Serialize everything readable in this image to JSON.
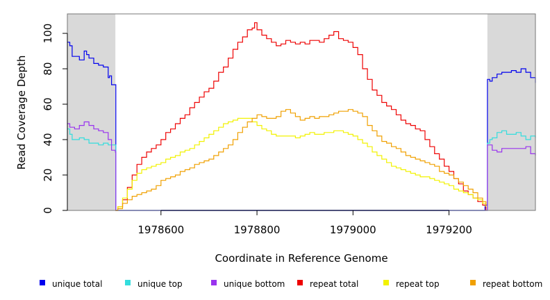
{
  "chart_data": {
    "type": "line",
    "title": "",
    "xlabel": "Coordinate in Reference Genome",
    "ylabel": "Read Coverage Depth",
    "xlim": [
      1978405,
      1979380
    ],
    "ylim": [
      0,
      111
    ],
    "xticks": [
      1978600,
      1978800,
      1979000,
      1979200
    ],
    "xtick_labels": [
      "1978600",
      "1978800",
      "1979000",
      "1979200"
    ],
    "yticks": [
      0,
      20,
      40,
      60,
      80,
      100
    ],
    "ytick_labels": [
      "0",
      "20",
      "40",
      "60",
      "80",
      "100"
    ],
    "shaded_regions": [
      {
        "from": 1978405,
        "to": 1978505,
        "color": "#d9d9d9"
      },
      {
        "from": 1979280,
        "to": 1979380,
        "color": "#d9d9d9"
      }
    ],
    "grid": false,
    "legend_placement": "bottom",
    "series": [
      {
        "name": "unique total",
        "color": "#0000ee",
        "x": [
          1978405,
          1978410,
          1978415,
          1978420,
          1978430,
          1978440,
          1978445,
          1978450,
          1978460,
          1978470,
          1978480,
          1978490,
          1978493,
          1978497,
          1978505,
          1978506,
          1978510,
          1979270,
          1979275,
          1979276,
          1979280,
          1979285,
          1979290,
          1979300,
          1979310,
          1979320,
          1979330,
          1979340,
          1979350,
          1979360,
          1979370,
          1979380
        ],
        "y": [
          95,
          93,
          87,
          87,
          85,
          90,
          88,
          86,
          83,
          82,
          81,
          75,
          76,
          71,
          71,
          0,
          0,
          0,
          2,
          3,
          74,
          73,
          75,
          77,
          78,
          78,
          79,
          78,
          80,
          78,
          75,
          72
        ]
      },
      {
        "name": "unique top",
        "color": "#33dddd",
        "x": [
          1978405,
          1978410,
          1978415,
          1978430,
          1978440,
          1978450,
          1978460,
          1978470,
          1978480,
          1978490,
          1978497,
          1978505,
          1978506,
          1978510,
          1979270,
          1979279,
          1979280,
          1979285,
          1979290,
          1979300,
          1979310,
          1979320,
          1979330,
          1979340,
          1979350,
          1979360,
          1979370,
          1979380
        ],
        "y": [
          46,
          43,
          40,
          41,
          40,
          38,
          38,
          37,
          38,
          37,
          37,
          37,
          0,
          0,
          0,
          0,
          38,
          40,
          41,
          44,
          45,
          43,
          43,
          44,
          42,
          40,
          42,
          41
        ]
      },
      {
        "name": "unique bottom",
        "color": "#9933ee",
        "x": [
          1978405,
          1978410,
          1978420,
          1978430,
          1978440,
          1978450,
          1978460,
          1978470,
          1978480,
          1978490,
          1978497,
          1978505,
          1978506,
          1978510,
          1979270,
          1979279,
          1979280,
          1979290,
          1979300,
          1979310,
          1979320,
          1979330,
          1979340,
          1979350,
          1979360,
          1979370,
          1979380
        ],
        "y": [
          49,
          47,
          46,
          48,
          50,
          48,
          46,
          45,
          44,
          40,
          34,
          33,
          0,
          0,
          0,
          0,
          37,
          34,
          33,
          35,
          35,
          35,
          35,
          35,
          36,
          32,
          31
        ]
      },
      {
        "name": "repeat total",
        "color": "#ee0000",
        "x": [
          1978505,
          1978510,
          1978520,
          1978530,
          1978540,
          1978550,
          1978560,
          1978570,
          1978580,
          1978590,
          1978600,
          1978610,
          1978620,
          1978630,
          1978640,
          1978650,
          1978660,
          1978670,
          1978680,
          1978690,
          1978700,
          1978710,
          1978720,
          1978730,
          1978740,
          1978750,
          1978760,
          1978770,
          1978780,
          1978790,
          1978795,
          1978800,
          1978810,
          1978820,
          1978830,
          1978840,
          1978850,
          1978860,
          1978870,
          1978880,
          1978890,
          1978900,
          1978910,
          1978920,
          1978930,
          1978940,
          1978950,
          1978960,
          1978970,
          1978980,
          1978990,
          1979000,
          1979010,
          1979020,
          1979030,
          1979040,
          1979050,
          1979060,
          1979070,
          1979080,
          1979090,
          1979100,
          1979110,
          1979120,
          1979130,
          1979140,
          1979150,
          1979160,
          1979170,
          1979180,
          1979190,
          1979200,
          1979210,
          1979220,
          1979230,
          1979240,
          1979250,
          1979260,
          1979270,
          1979277
        ],
        "y": [
          0,
          2,
          6,
          13,
          20,
          26,
          30,
          33,
          35,
          37,
          40,
          44,
          46,
          49,
          52,
          54,
          58,
          61,
          64,
          67,
          69,
          73,
          78,
          81,
          86,
          91,
          95,
          98,
          102,
          103,
          106,
          102,
          99,
          97,
          95,
          93,
          94,
          96,
          95,
          94,
          95,
          94,
          96,
          96,
          95,
          97,
          99,
          101,
          97,
          96,
          95,
          92,
          88,
          80,
          74,
          68,
          65,
          61,
          59,
          57,
          54,
          51,
          49,
          48,
          46,
          45,
          40,
          36,
          32,
          29,
          25,
          22,
          18,
          15,
          11,
          9,
          7,
          5,
          3,
          0
        ]
      },
      {
        "name": "repeat top",
        "color": "#f2f200",
        "x": [
          1978505,
          1978510,
          1978520,
          1978530,
          1978540,
          1978550,
          1978560,
          1978570,
          1978580,
          1978590,
          1978600,
          1978610,
          1978620,
          1978630,
          1978640,
          1978650,
          1978660,
          1978670,
          1978680,
          1978690,
          1978700,
          1978710,
          1978720,
          1978730,
          1978740,
          1978750,
          1978760,
          1978770,
          1978780,
          1978790,
          1978800,
          1978810,
          1978820,
          1978830,
          1978840,
          1978850,
          1978860,
          1978870,
          1978880,
          1978890,
          1978900,
          1978910,
          1978920,
          1978930,
          1978940,
          1978950,
          1978960,
          1978970,
          1978980,
          1978990,
          1979000,
          1979010,
          1979020,
          1979030,
          1979040,
          1979050,
          1979060,
          1979070,
          1979080,
          1979090,
          1979100,
          1979110,
          1979120,
          1979130,
          1979140,
          1979150,
          1979160,
          1979170,
          1979180,
          1979190,
          1979200,
          1979210,
          1979220,
          1979230,
          1979240,
          1979250,
          1979260,
          1979270,
          1979277
        ],
        "y": [
          0,
          2,
          7,
          12,
          17,
          21,
          23,
          24,
          25,
          26,
          27,
          29,
          30,
          31,
          33,
          34,
          35,
          37,
          39,
          41,
          43,
          45,
          47,
          49,
          50,
          51,
          52,
          52,
          52,
          50,
          48,
          46,
          45,
          43,
          42,
          42,
          42,
          42,
          41,
          42,
          43,
          44,
          43,
          43,
          44,
          44,
          45,
          45,
          44,
          43,
          42,
          40,
          38,
          36,
          33,
          31,
          29,
          27,
          25,
          24,
          23,
          22,
          21,
          20,
          19,
          19,
          18,
          17,
          16,
          15,
          14,
          12,
          11,
          10,
          9,
          7,
          6,
          4,
          2
        ]
      },
      {
        "name": "repeat bottom",
        "color": "#f0a000",
        "x": [
          1978505,
          1978510,
          1978520,
          1978530,
          1978540,
          1978550,
          1978560,
          1978570,
          1978580,
          1978590,
          1978600,
          1978610,
          1978620,
          1978630,
          1978640,
          1978650,
          1978660,
          1978670,
          1978680,
          1978690,
          1978700,
          1978710,
          1978720,
          1978730,
          1978740,
          1978750,
          1978760,
          1978770,
          1978780,
          1978790,
          1978800,
          1978810,
          1978820,
          1978830,
          1978840,
          1978850,
          1978860,
          1978870,
          1978880,
          1978890,
          1978900,
          1978910,
          1978920,
          1978930,
          1978940,
          1978950,
          1978960,
          1978970,
          1978980,
          1978990,
          1979000,
          1979010,
          1979020,
          1979030,
          1979040,
          1979050,
          1979060,
          1979070,
          1979080,
          1979090,
          1979100,
          1979110,
          1979120,
          1979130,
          1979140,
          1979150,
          1979160,
          1979170,
          1979180,
          1979190,
          1979200,
          1979210,
          1979220,
          1979230,
          1979240,
          1979250,
          1979260,
          1979270,
          1979277
        ],
        "y": [
          0,
          1,
          4,
          6,
          8,
          9,
          10,
          11,
          12,
          14,
          17,
          18,
          19,
          20,
          22,
          23,
          24,
          26,
          27,
          28,
          29,
          31,
          33,
          35,
          37,
          40,
          44,
          47,
          50,
          52,
          54,
          53,
          52,
          52,
          53,
          56,
          57,
          55,
          53,
          51,
          52,
          53,
          52,
          53,
          53,
          54,
          55,
          56,
          56,
          57,
          56,
          55,
          53,
          48,
          45,
          42,
          39,
          38,
          36,
          35,
          33,
          31,
          30,
          29,
          28,
          27,
          26,
          25,
          22,
          21,
          20,
          18,
          16,
          14,
          12,
          10,
          7,
          5,
          3
        ]
      }
    ]
  }
}
